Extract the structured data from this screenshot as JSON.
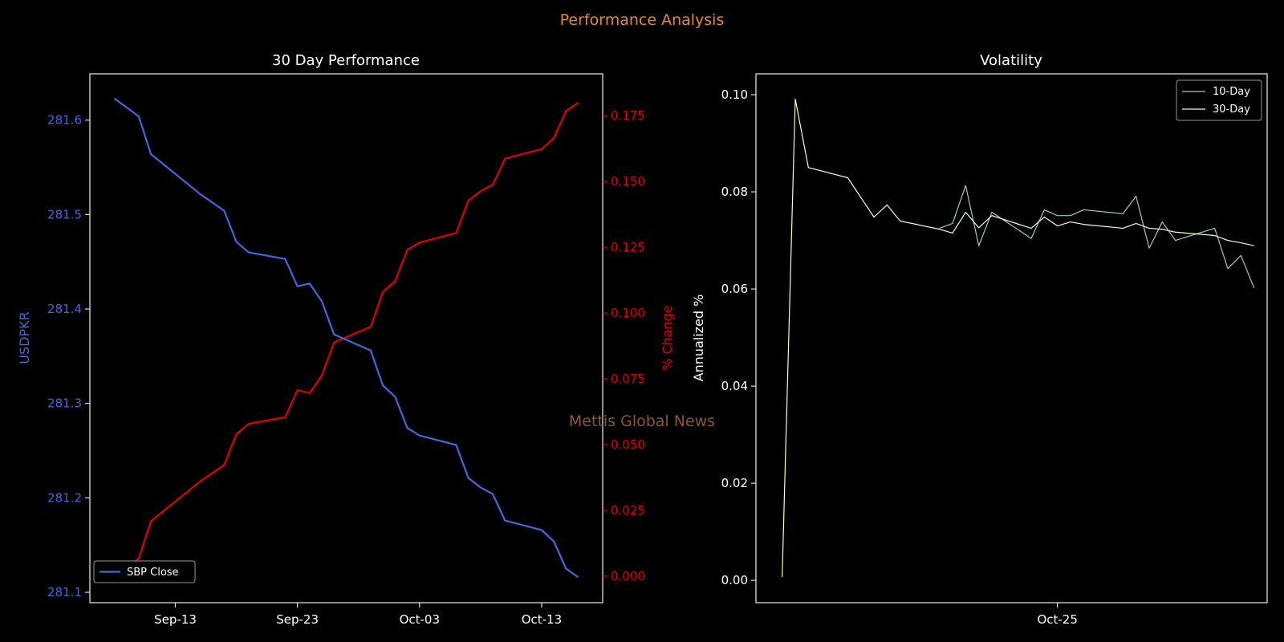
{
  "suptitle": "Performance Analysis",
  "watermark": "Mettis Global News",
  "colors": {
    "background": "#000000",
    "suptitle": "#e8892b",
    "watermark": "#8b5a2b",
    "close_line": "#4169e1",
    "pct_line": "#e00000",
    "vol10": "#8dd3c7",
    "vol30": "#feffb3",
    "axes": "#dddddd",
    "text": "#ffffff"
  },
  "chart_data": [
    {
      "type": "line",
      "title": "30 Day Performance",
      "xlabel": "",
      "ylabel": "USDPKR",
      "ylabel_right": "% Change",
      "x_ticks": [
        "Sep-13",
        "Sep-23",
        "Oct-03",
        "Oct-13"
      ],
      "xlim": [
        "Sep-06",
        "Oct-18"
      ],
      "ylim": [
        281.089,
        281.649
      ],
      "y_ticks": [
        "281.1",
        "281.2",
        "281.3",
        "281.4",
        "281.5",
        "281.6"
      ],
      "ylim_right": [
        -0.0101,
        0.1909
      ],
      "y_ticks_right": [
        "0.000",
        "0.025",
        "0.050",
        "0.075",
        "0.100",
        "0.125",
        "0.150",
        "0.175"
      ],
      "legend": {
        "placement": "lower-left",
        "entries": [
          "SBP Close"
        ]
      },
      "grid": false,
      "x": [
        "Sep-08",
        "Sep-10",
        "Sep-11",
        "Sep-15",
        "Sep-17",
        "Sep-18",
        "Sep-19",
        "Sep-22",
        "Sep-23",
        "Sep-24",
        "Sep-25",
        "Sep-26",
        "Sep-29",
        "Sep-30",
        "Oct-01",
        "Oct-02",
        "Oct-03",
        "Oct-06",
        "Oct-07",
        "Oct-08",
        "Oct-09",
        "Oct-10",
        "Oct-13",
        "Oct-14",
        "Oct-15",
        "Oct-16"
      ],
      "series": [
        {
          "name": "SBP Close",
          "axis": "left",
          "values": [
            281.623,
            281.604,
            281.564,
            281.522,
            281.504,
            281.471,
            281.46,
            281.453,
            281.424,
            281.427,
            281.408,
            281.373,
            281.356,
            281.319,
            281.307,
            281.274,
            281.266,
            281.256,
            281.221,
            281.211,
            281.204,
            281.176,
            281.166,
            281.154,
            281.125,
            281.116
          ]
        },
        {
          "axis": "right",
          "values": [
            0,
            0.0067,
            0.0209,
            0.0359,
            0.0423,
            0.054,
            0.0579,
            0.0604,
            0.0707,
            0.0696,
            0.0763,
            0.0888,
            0.0948,
            0.108,
            0.1122,
            0.124,
            0.1268,
            0.1304,
            0.1428,
            0.1463,
            0.1488,
            0.1587,
            0.1623,
            0.1665,
            0.1768,
            0.18
          ]
        }
      ]
    },
    {
      "type": "line",
      "title": "Volatility",
      "xlabel": "",
      "ylabel": "Annualized %",
      "x_ticks": [
        "Oct-25"
      ],
      "xlim": [
        "Oct-02",
        "Nov-10"
      ],
      "ylim": [
        -0.0046,
        0.1043
      ],
      "y_ticks": [
        "0.00",
        "0.02",
        "0.04",
        "0.06",
        "0.08",
        "0.10"
      ],
      "legend": {
        "placement": "upper-right",
        "entries": [
          "10-Day",
          "30-Day"
        ]
      },
      "grid": false,
      "x": [
        "Oct-04",
        "Oct-05",
        "Oct-06",
        "Oct-09",
        "Oct-11",
        "Oct-12",
        "Oct-13",
        "Oct-16",
        "Oct-17",
        "Oct-18",
        "Oct-19",
        "Oct-20",
        "Oct-23",
        "Oct-24",
        "Oct-25",
        "Oct-26",
        "Oct-27",
        "Oct-30",
        "Oct-31",
        "Nov-01",
        "Nov-02",
        "Nov-03",
        "Nov-06",
        "Nov-07",
        "Nov-08",
        "Nov-09"
      ],
      "series": [
        {
          "name": "10-Day",
          "values": [
            null,
            null,
            null,
            null,
            null,
            null,
            null,
            0.0725,
            0.0735,
            0.0813,
            0.0689,
            0.0758,
            0.0704,
            0.0763,
            0.0751,
            0.0751,
            0.0763,
            0.0755,
            0.0791,
            0.0684,
            0.0738,
            0.07,
            0.0725,
            0.0642,
            0.0669,
            0.0602
          ]
        },
        {
          "name": "30-Day",
          "values": [
            0.0007,
            0.0991,
            0.085,
            0.0829,
            0.0748,
            0.0773,
            0.074,
            0.0723,
            0.0715,
            0.0758,
            0.0726,
            0.0751,
            0.0725,
            0.0748,
            0.073,
            0.0738,
            0.0733,
            0.0725,
            0.0735,
            0.0725,
            0.0723,
            0.0717,
            0.071,
            0.07,
            0.0695,
            0.0689
          ]
        }
      ]
    }
  ]
}
